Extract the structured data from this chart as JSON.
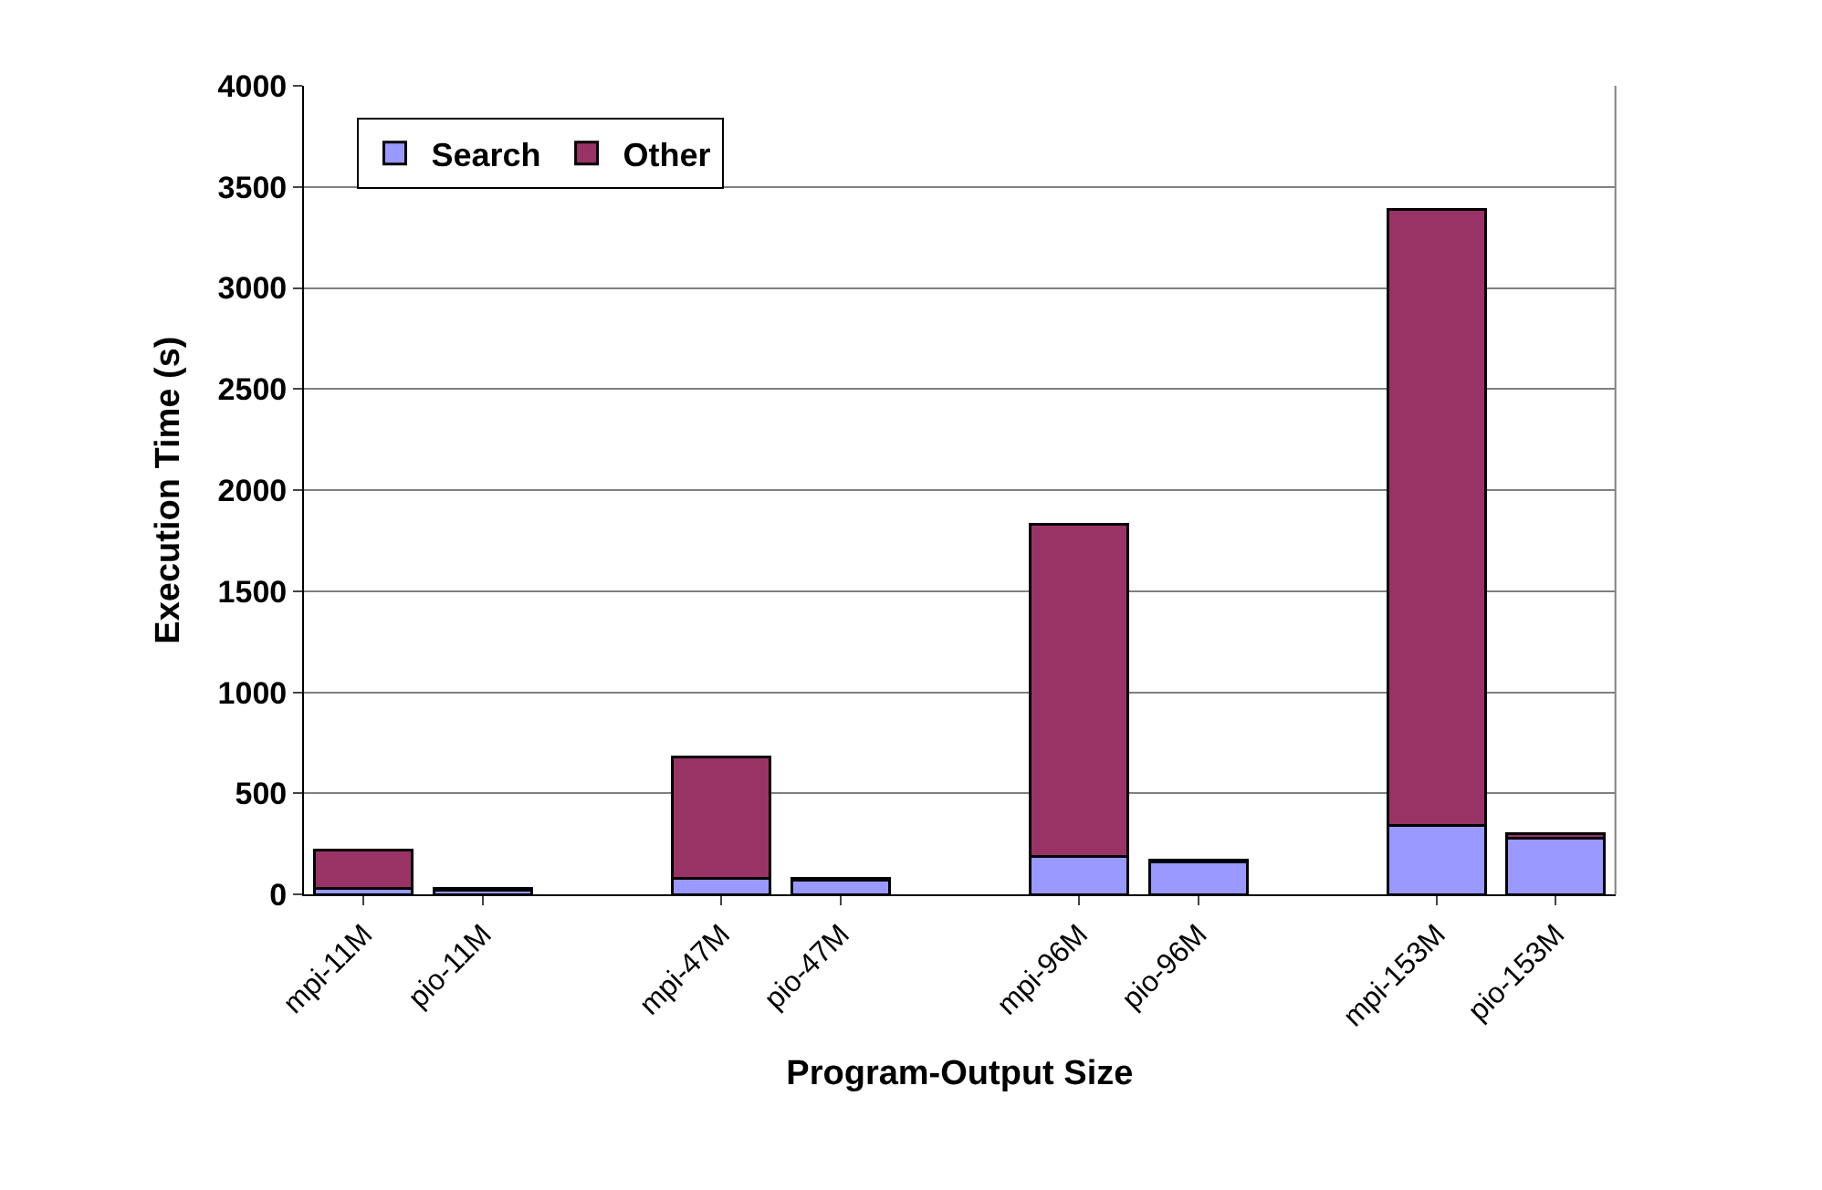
{
  "chart_data": {
    "type": "bar",
    "stacked": true,
    "xlabel": "Program-Output Size",
    "ylabel": "Execution Time (s)",
    "categories": [
      "mpi-11M",
      "pio-11M",
      null,
      "mpi-47M",
      "pio-47M",
      null,
      "mpi-96M",
      "pio-96M",
      null,
      "mpi-153M",
      "pio-153M"
    ],
    "series": [
      {
        "name": "Search",
        "color": "#9999ff",
        "values": [
          30,
          20,
          null,
          80,
          70,
          null,
          190,
          160,
          null,
          340,
          280
        ]
      },
      {
        "name": "Other",
        "color": "#993366",
        "values": [
          190,
          10,
          null,
          600,
          10,
          null,
          1640,
          10,
          null,
          3050,
          20
        ]
      }
    ],
    "ylim": [
      0,
      4000
    ],
    "yticks": [
      0,
      500,
      1000,
      1500,
      2000,
      2500,
      3000,
      3500,
      4000
    ],
    "grid": "y",
    "legend": "top left"
  }
}
